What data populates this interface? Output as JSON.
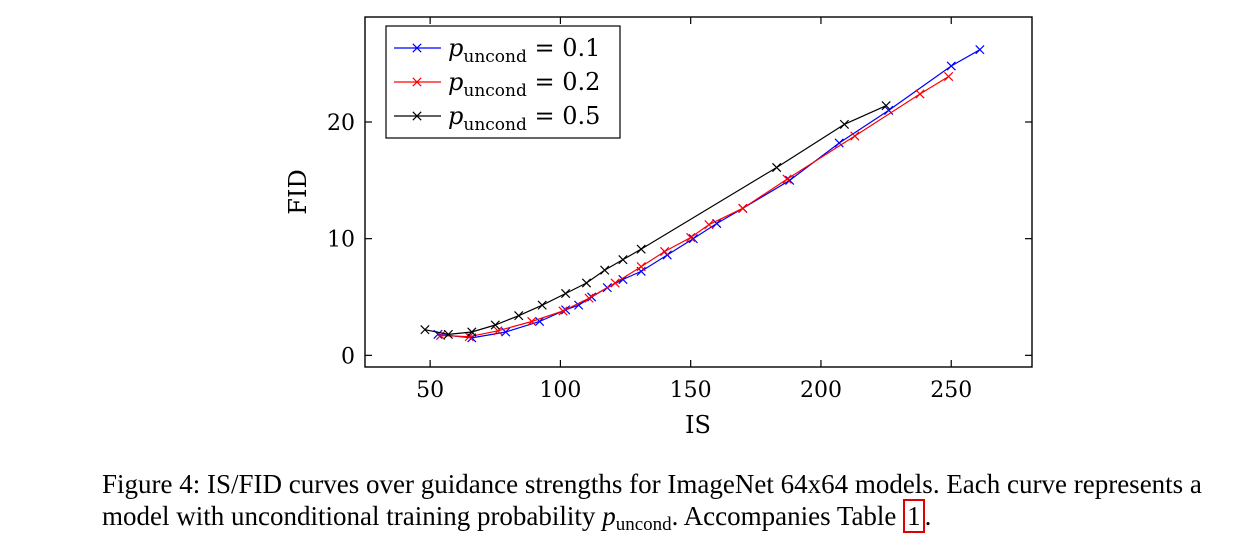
{
  "chart_data": {
    "type": "line",
    "title": "",
    "xlabel": "IS",
    "ylabel": "FID",
    "xlim": [
      25,
      281
    ],
    "ylim": [
      -1,
      29
    ],
    "xticks": [
      50,
      100,
      150,
      200,
      250
    ],
    "yticks": [
      0,
      10,
      20
    ],
    "grid": false,
    "legend_position": "top-left",
    "series": [
      {
        "name_symbol": "p",
        "name_subscript": "uncond",
        "name_rest": " = 0.1",
        "color": "#0000ff",
        "marker": "x",
        "x": [
          53,
          66,
          79,
          92,
          102,
          107,
          112,
          118,
          124,
          131,
          141,
          151,
          160,
          170,
          188,
          207,
          226,
          250,
          261
        ],
        "y": [
          1.8,
          1.5,
          2.0,
          2.9,
          3.9,
          4.3,
          5.0,
          5.8,
          6.5,
          7.2,
          8.6,
          10.0,
          11.3,
          12.6,
          15.0,
          18.2,
          21.0,
          24.8,
          26.2
        ]
      },
      {
        "name_symbol": "p",
        "name_subscript": "uncond",
        "name_rest": " = 0.2",
        "color": "#ff0000",
        "marker": "x",
        "x": [
          54,
          65,
          76,
          89,
          101,
          111,
          121,
          131,
          140,
          150,
          157,
          170,
          187,
          213,
          238,
          249
        ],
        "y": [
          1.7,
          1.6,
          2.1,
          2.9,
          3.8,
          4.9,
          6.2,
          7.6,
          8.9,
          10.1,
          11.2,
          12.6,
          15.1,
          18.8,
          22.4,
          23.9
        ]
      },
      {
        "name_symbol": "p",
        "name_subscript": "uncond",
        "name_rest": " = 0.5",
        "color": "#000000",
        "marker": "x",
        "x": [
          48,
          57,
          66,
          75,
          84,
          93,
          102,
          110,
          117,
          124,
          131,
          183,
          209,
          225
        ],
        "y": [
          2.2,
          1.8,
          2.0,
          2.6,
          3.4,
          4.3,
          5.3,
          6.2,
          7.3,
          8.2,
          9.1,
          16.1,
          19.8,
          21.4
        ]
      }
    ]
  },
  "caption": {
    "part1": "Figure 4: IS/FID curves over guidance strengths for ImageNet 64x64 models. Each curve represents a model with unconditional training probability ",
    "symbol": "p",
    "subscript": "uncond",
    "part2": ". Accompanies Table ",
    "ref": "1",
    "part3": "."
  }
}
